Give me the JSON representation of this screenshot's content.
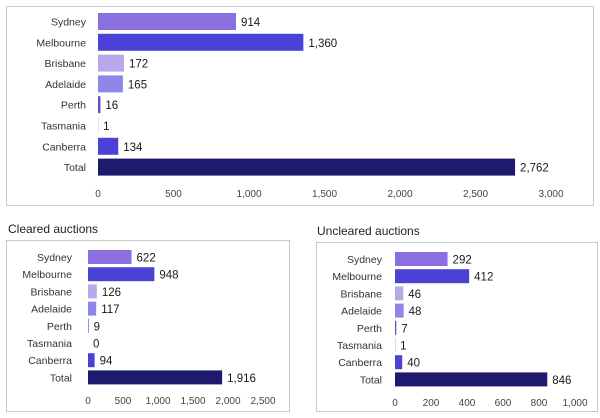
{
  "chart_data": [
    {
      "type": "bar",
      "orientation": "horizontal",
      "title": "",
      "categories": [
        "Sydney",
        "Melbourne",
        "Brisbane",
        "Adelaide",
        "Perth",
        "Tasmania",
        "Canberra",
        "Total"
      ],
      "values": [
        914,
        1360,
        172,
        165,
        16,
        1,
        134,
        2762
      ],
      "value_labels": [
        "914",
        "1,360",
        "172",
        "165",
        "16",
        "1",
        "134",
        "2,762"
      ],
      "xlim": [
        0,
        3000
      ],
      "ticks": [
        0,
        500,
        1000,
        1500,
        2000,
        2500,
        3000
      ],
      "tick_labels": [
        "0",
        "500",
        "1,000",
        "1,500",
        "2,000",
        "2,500",
        "3,000"
      ],
      "grid": false
    },
    {
      "type": "bar",
      "orientation": "horizontal",
      "title": "Cleared auctions",
      "categories": [
        "Sydney",
        "Melbourne",
        "Brisbane",
        "Adelaide",
        "Perth",
        "Tasmania",
        "Canberra",
        "Total"
      ],
      "values": [
        622,
        948,
        126,
        117,
        9,
        0,
        94,
        1916
      ],
      "value_labels": [
        "622",
        "948",
        "126",
        "117",
        "9",
        "0",
        "94",
        "1,916"
      ],
      "xlim": [
        0,
        2500
      ],
      "ticks": [
        0,
        500,
        1000,
        1500,
        2000,
        2500
      ],
      "tick_labels": [
        "0",
        "500",
        "1,000",
        "1,500",
        "2,000",
        "2,500"
      ],
      "grid": false
    },
    {
      "type": "bar",
      "orientation": "horizontal",
      "title": "Uncleared auctions",
      "categories": [
        "Sydney",
        "Melbourne",
        "Brisbane",
        "Adelaide",
        "Perth",
        "Tasmania",
        "Canberra",
        "Total"
      ],
      "values": [
        292,
        412,
        46,
        48,
        7,
        1,
        40,
        846
      ],
      "value_labels": [
        "292",
        "412",
        "46",
        "48",
        "7",
        "1",
        "40",
        "846"
      ],
      "xlim": [
        0,
        1000
      ],
      "ticks": [
        0,
        200,
        400,
        600,
        800,
        1000
      ],
      "tick_labels": [
        "0",
        "200",
        "400",
        "600",
        "800",
        "1,000"
      ],
      "grid": false
    }
  ],
  "colors": {
    "Sydney": "#8b6fe0",
    "Melbourne": "#4a42d6",
    "Brisbane": "#b7a8ec",
    "Adelaide": "#8f86ea",
    "Perth": "#5552c4",
    "Tasmania": "#3d3aa8",
    "Canberra": "#4a42d6",
    "Total": "#1e1a6e"
  }
}
